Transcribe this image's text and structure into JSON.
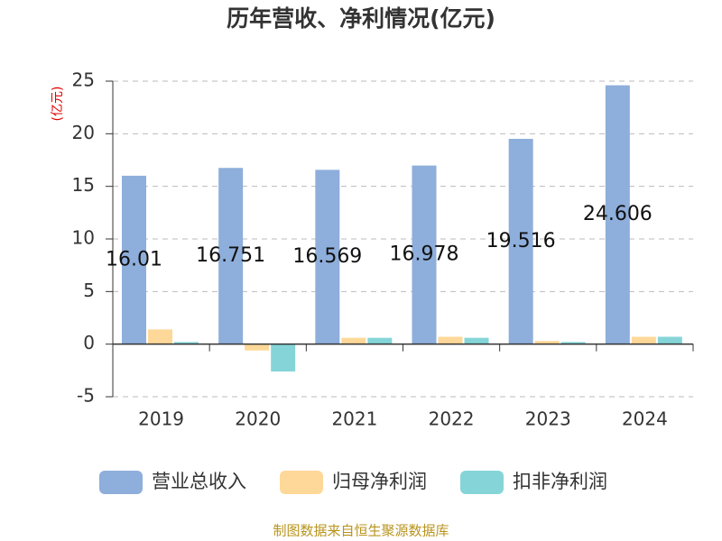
{
  "chart_data": {
    "type": "bar",
    "title": "历年营收、净利情况(亿元)",
    "y_label": "(亿元)",
    "source": "制图数据来自恒生聚源数据库",
    "categories": [
      "2019",
      "2020",
      "2021",
      "2022",
      "2023",
      "2024"
    ],
    "series": [
      {
        "name": "营业总收入",
        "color": "#8eaedb",
        "values": [
          16.01,
          16.751,
          16.569,
          16.978,
          19.516,
          24.606
        ],
        "show_labels": true
      },
      {
        "name": "归母净利润",
        "color": "#fdd898",
        "values": [
          1.4,
          -0.6,
          0.6,
          0.7,
          0.3,
          0.7
        ]
      },
      {
        "name": "扣非净利润",
        "color": "#85d5d8",
        "values": [
          0.2,
          -2.6,
          0.6,
          0.6,
          0.2,
          0.7
        ]
      }
    ],
    "ylim": [
      -5,
      25
    ],
    "yticks": [
      -5,
      0,
      5,
      10,
      15,
      20,
      25
    ],
    "grid": true,
    "legend": "bottom"
  }
}
